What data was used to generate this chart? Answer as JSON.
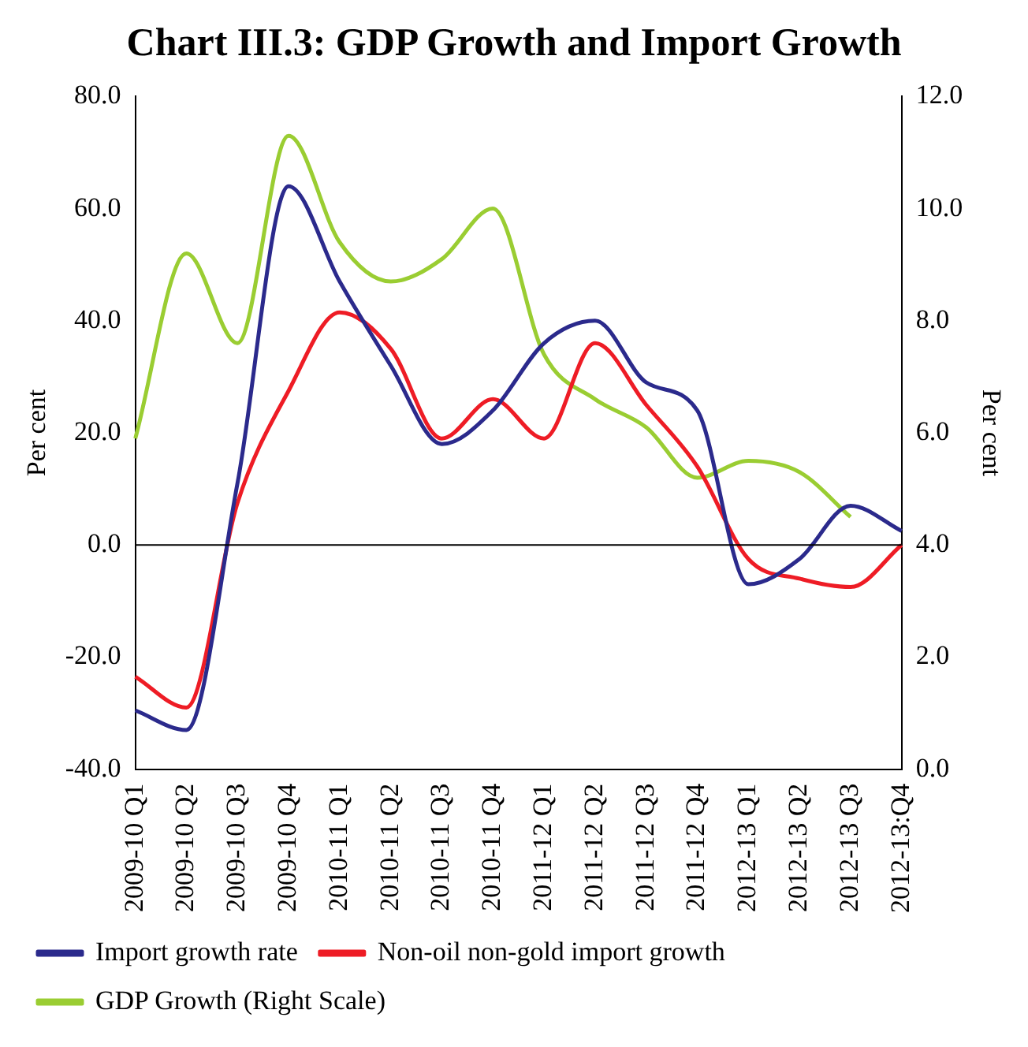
{
  "chart_data": {
    "type": "line",
    "title": "Chart III.3: GDP Growth and Import Growth",
    "ylabel": "Per cent",
    "y2label": "Per cent",
    "categories": [
      "2009-10 Q1",
      "2009-10 Q2",
      "2009-10 Q3",
      "2009-10 Q4",
      "2010-11 Q1",
      "2010-11 Q2",
      "2010-11 Q3",
      "2010-11 Q4",
      "2011-12 Q1",
      "2011-12 Q2",
      "2011-12 Q3",
      "2011-12 Q4",
      "2012-13 Q1",
      "2012-13 Q2",
      "2012-13 Q3",
      "2012-13:Q4"
    ],
    "series": [
      {
        "name": "Import growth rate",
        "color": "#2b2a8c",
        "values": [
          -29.5,
          -33,
          11,
          64,
          47,
          32,
          18,
          24,
          36,
          40,
          29,
          24,
          -7,
          -2.5,
          7,
          2.5
        ]
      },
      {
        "name": "Non-oil non-gold import growth",
        "color": "#ee1c25",
        "values": [
          -23.5,
          -29,
          7.5,
          27.5,
          41.5,
          35,
          19,
          26,
          19,
          36,
          25,
          14,
          -2.5,
          -6,
          -7.5,
          0
        ]
      },
      {
        "name": "GDP Growth (Right Scale)",
        "color": "#9acd32",
        "axis": "y2",
        "values": [
          5.9,
          9.2,
          7.6,
          11.3,
          9.4,
          8.7,
          9.1,
          10.0,
          7.4,
          6.6,
          6.1,
          5.2,
          5.5,
          5.3,
          4.5,
          null
        ]
      }
    ],
    "ylim": [
      -40,
      80
    ],
    "yticks": [
      {
        "value": -40,
        "label": "-40.0"
      },
      {
        "value": -20,
        "label": "-20.0"
      },
      {
        "value": 0,
        "label": "0.0"
      },
      {
        "value": 20,
        "label": "20.0"
      },
      {
        "value": 40,
        "label": "40.0"
      },
      {
        "value": 60,
        "label": "60.0"
      },
      {
        "value": 80,
        "label": "80.0"
      }
    ],
    "y2lim": [
      0,
      12
    ],
    "y2ticks": [
      {
        "value": 0,
        "label": "0.0"
      },
      {
        "value": 2,
        "label": "2.0"
      },
      {
        "value": 4,
        "label": "4.0"
      },
      {
        "value": 6,
        "label": "6.0"
      },
      {
        "value": 8,
        "label": "8.0"
      },
      {
        "value": 10,
        "label": "10.0"
      },
      {
        "value": 12,
        "label": "12.0"
      }
    ],
    "ref_lines": [
      {
        "axis": "y",
        "value": 0,
        "color": "#000000"
      }
    ],
    "grid": false,
    "legend": "bottom",
    "marker": "none",
    "line_style": "solid"
  }
}
